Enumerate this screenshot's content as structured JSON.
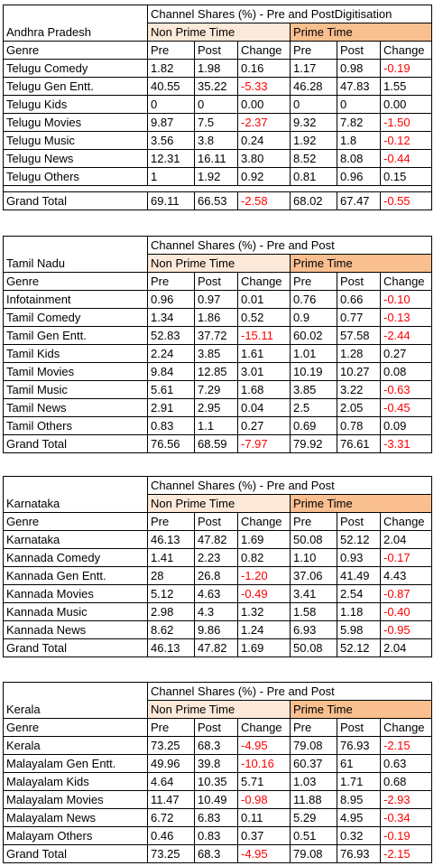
{
  "tables": [
    {
      "region": "Andhra Pradesh",
      "title": "Channel Shares (%) - Pre and PostDigitisation",
      "non_prime_label": "Non Prime Time",
      "prime_label": "Prime Time",
      "headers": [
        "Genre",
        "Pre",
        "Post",
        "Change",
        "Pre",
        "Post",
        "Change"
      ],
      "rows": [
        [
          "Telugu Comedy",
          "1.82",
          "1.98",
          "0.16",
          "1.17",
          "0.98",
          "-0.19"
        ],
        [
          "Telugu Gen Entt.",
          "40.55",
          "35.22",
          "-5.33",
          "46.28",
          "47.83",
          "1.55"
        ],
        [
          "Telugu Kids",
          "0",
          "0",
          "0.00",
          "0",
          "0",
          "0.00"
        ],
        [
          "Telugu Movies",
          "9.87",
          "7.5",
          "-2.37",
          "9.32",
          "7.82",
          "-1.50"
        ],
        [
          "Telugu Music",
          "3.56",
          "3.8",
          "0.24",
          "1.92",
          "1.8",
          "-0.12"
        ],
        [
          "Telugu News",
          "12.31",
          "16.11",
          "3.80",
          "8.52",
          "8.08",
          "-0.44"
        ],
        [
          "Telugu Others",
          "1",
          "1.92",
          "0.92",
          "0.81",
          "0.96",
          "0.15"
        ]
      ],
      "blank_before_total": true,
      "total": [
        "Grand Total",
        "69.11",
        "66.53",
        "-2.58",
        "68.02",
        "67.47",
        "-0.55"
      ]
    },
    {
      "region": "Tamil Nadu",
      "title": "Channel Shares (%) - Pre and Post",
      "non_prime_label": "Non Prime Time",
      "prime_label": "Prime Time",
      "headers": [
        "Genre",
        "Pre",
        "Post",
        "Change",
        "Pre",
        "Post",
        "Change"
      ],
      "rows": [
        [
          "Infotainment",
          "0.96",
          "0.97",
          "0.01",
          "0.76",
          "0.66",
          "-0.10"
        ],
        [
          "Tamil Comedy",
          "1.34",
          "1.86",
          "0.52",
          "0.9",
          "0.77",
          "-0.13"
        ],
        [
          "Tamil Gen Entt.",
          "52.83",
          "37.72",
          "-15.11",
          "60.02",
          "57.58",
          "-2.44"
        ],
        [
          "Tamil Kids",
          "2.24",
          "3.85",
          "1.61",
          "1.01",
          "1.28",
          "0.27"
        ],
        [
          "Tamil Movies",
          "9.84",
          "12.85",
          "3.01",
          "10.19",
          "10.27",
          "0.08"
        ],
        [
          "Tamil Music",
          "5.61",
          "7.29",
          "1.68",
          "3.85",
          "3.22",
          "-0.63"
        ],
        [
          "Tamil News",
          "2.91",
          "2.95",
          "0.04",
          "2.5",
          "2.05",
          "-0.45"
        ],
        [
          "Tamil Others",
          "0.83",
          "1.1",
          "0.27",
          "0.69",
          "0.78",
          "0.09"
        ]
      ],
      "blank_before_total": false,
      "total": [
        "Grand Total",
        "76.56",
        "68.59",
        "-7.97",
        "79.92",
        "76.61",
        "-3.31"
      ]
    },
    {
      "region": "Karnataka",
      "title": "Channel Shares (%) - Pre and Post",
      "non_prime_label": "Non Prime Time",
      "prime_label": "Prime Time",
      "headers": [
        "Genre",
        "Pre",
        "Post",
        "Change",
        "Pre",
        "Post",
        "Change"
      ],
      "rows": [
        [
          "Karnataka",
          "46.13",
          "47.82",
          "1.69",
          "50.08",
          "52.12",
          "2.04"
        ],
        [
          "Kannada Comedy",
          "1.41",
          "2.23",
          "0.82",
          "1.10",
          "0.93",
          "-0.17"
        ],
        [
          "Kannada Gen Entt.",
          "28",
          "26.8",
          "-1.20",
          "37.06",
          "41.49",
          "4.43"
        ],
        [
          "Kannada Movies",
          "5.12",
          "4.63",
          "-0.49",
          "3.41",
          "2.54",
          "-0.87"
        ],
        [
          "Kannada Music",
          "2.98",
          "4.3",
          "1.32",
          "1.58",
          "1.18",
          "-0.40"
        ],
        [
          "Kannada News",
          "8.62",
          "9.86",
          "1.24",
          "6.93",
          "5.98",
          "-0.95"
        ]
      ],
      "blank_before_total": false,
      "total": [
        "Grand Total",
        "46.13",
        "47.82",
        "1.69",
        "50.08",
        "52.12",
        "2.04"
      ]
    },
    {
      "region": "Kerala",
      "title": "Channel Shares (%) - Pre and Post",
      "non_prime_label": "Non Prime Time",
      "prime_label": "Prime Time",
      "headers": [
        "Genre",
        "Pre",
        "Post",
        "Change",
        "Pre",
        "Post",
        "Change"
      ],
      "rows": [
        [
          "Kerala",
          "73.25",
          "68.3",
          "-4.95",
          "79.08",
          "76.93",
          "-2.15"
        ],
        [
          "Malayalam Gen Entt.",
          "49.96",
          "39.8",
          "-10.16",
          "60.37",
          "61",
          "0.63"
        ],
        [
          "Malayalam Kids",
          "4.64",
          "10.35",
          "5.71",
          "1.03",
          "1.71",
          "0.68"
        ],
        [
          "Malayalam Movies",
          "11.47",
          "10.49",
          "-0.98",
          "11.88",
          "8.95",
          "-2.93"
        ],
        [
          "Malayalam News",
          "6.72",
          "6.83",
          "0.11",
          "5.29",
          "4.95",
          "-0.34"
        ],
        [
          "Malayam Others",
          "0.46",
          "0.83",
          "0.37",
          "0.51",
          "0.32",
          "-0.19"
        ]
      ],
      "blank_before_total": false,
      "total": [
        "Grand Total",
        "73.25",
        "68.3",
        "-4.95",
        "79.08",
        "76.93",
        "-2.15"
      ]
    }
  ],
  "colors": {
    "non_prime_fill": "#fde9d9",
    "prime_fill": "#f9bf8f",
    "negative_text": "#ff0000",
    "border": "#000000"
  }
}
